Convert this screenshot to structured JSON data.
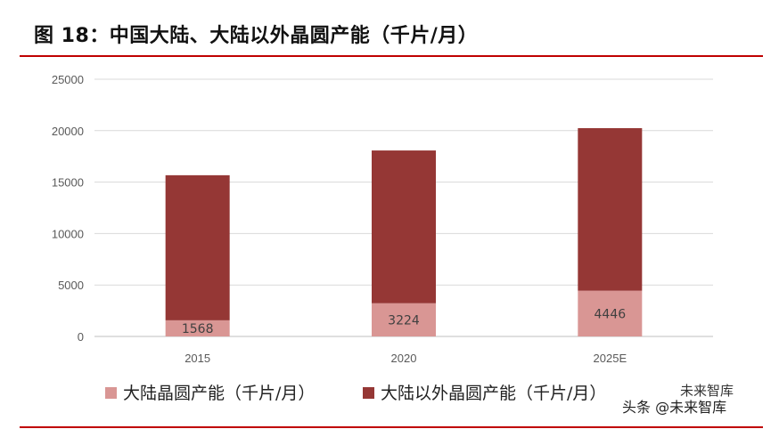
{
  "title": "图 18：中国大陆、大陆以外晶圆产能（千片/月）",
  "colors": {
    "rule": "#c00000",
    "series1": "#d99694",
    "series2": "#953735"
  },
  "watermark": {
    "line1": "未来智库",
    "line2": "头条 @未来智库"
  },
  "chart_data": {
    "type": "bar",
    "stacked": true,
    "categories": [
      "2015",
      "2020",
      "2025E"
    ],
    "series": [
      {
        "name": "大陆晶圆产能（千片/月）",
        "values": [
          1568,
          3224,
          4446
        ],
        "color": "#d99694"
      },
      {
        "name": "大陆以外晶圆产能（千片/月）",
        "values": [
          14100,
          14850,
          15800
        ],
        "color": "#953735"
      }
    ],
    "data_labels": [
      "1568",
      "3224",
      "4446"
    ],
    "ylim": [
      0,
      25000
    ],
    "yticks": [
      "0",
      "5000",
      "10000",
      "15000",
      "20000",
      "25000"
    ],
    "grid": true,
    "legend": "bottom"
  }
}
